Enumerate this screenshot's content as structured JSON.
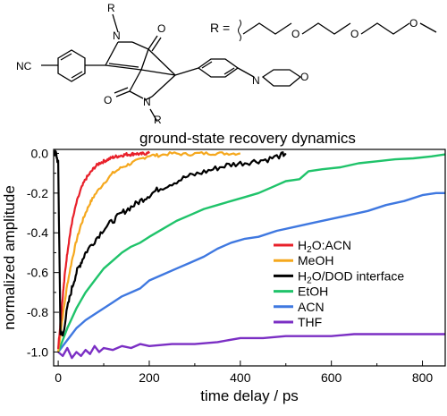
{
  "scheme": {
    "r_label": "R =",
    "atoms": {
      "nc": "NC",
      "n_top": "N",
      "n_bottom": "N",
      "n_morph": "N",
      "r_top": "R",
      "r_bottom": "R",
      "o_top": "O",
      "o_bottom": "O",
      "o_morph": "O",
      "o_chain": [
        "O",
        "O",
        "O"
      ]
    }
  },
  "chart_data": {
    "type": "line",
    "title": "ground-state recovery dynamics",
    "xlabel": "time delay / ps",
    "ylabel": "normalized amplitude",
    "xlim": [
      -10,
      850
    ],
    "ylim": [
      -1.07,
      0.02
    ],
    "xticks": [
      0,
      200,
      400,
      600,
      800
    ],
    "yticks": [
      0.0,
      -0.2,
      -0.4,
      -0.6,
      -0.8,
      -1.0
    ],
    "ytick_labels": [
      "0.0",
      "-0.2",
      "-0.4",
      "-0.6",
      "-0.8",
      "-1.0"
    ],
    "grid": false,
    "legend_position": "lower-right-inside",
    "series": [
      {
        "name": "H2O:ACN",
        "name_main": "H",
        "name_sub": "2",
        "name_rest": "O:ACN",
        "color": "#e8202a",
        "noise": 0.008,
        "x": [
          0,
          5,
          10,
          15,
          20,
          25,
          30,
          40,
          50,
          60,
          70,
          80,
          90,
          100,
          110,
          120,
          130,
          140,
          150,
          160,
          170,
          180,
          190,
          200
        ],
        "y": [
          -0.98,
          -0.85,
          -0.72,
          -0.6,
          -0.5,
          -0.42,
          -0.35,
          -0.25,
          -0.18,
          -0.13,
          -0.1,
          -0.07,
          -0.05,
          -0.04,
          -0.03,
          -0.02,
          -0.015,
          -0.01,
          -0.005,
          -0.005,
          0.0,
          -0.005,
          0.0,
          0.0
        ]
      },
      {
        "name": "MeOH",
        "color": "#f5a81e",
        "noise": 0.008,
        "x": [
          0,
          10,
          20,
          30,
          40,
          50,
          60,
          70,
          80,
          100,
          120,
          140,
          160,
          180,
          200,
          220,
          250,
          280,
          310,
          340,
          370,
          400
        ],
        "y": [
          -1.0,
          -0.82,
          -0.66,
          -0.54,
          -0.44,
          -0.36,
          -0.3,
          -0.25,
          -0.21,
          -0.15,
          -0.1,
          -0.07,
          -0.05,
          -0.03,
          -0.01,
          -0.01,
          0.0,
          -0.005,
          0.0,
          0.0,
          0.0,
          0.0
        ]
      },
      {
        "name": "H2O/DOD interface",
        "name_main": "H",
        "name_sub": "2",
        "name_rest": "O/DOD interface",
        "color": "#000000",
        "noise": 0.015,
        "x": [
          -10,
          -5,
          0,
          5,
          10,
          20,
          30,
          40,
          50,
          60,
          80,
          100,
          120,
          140,
          160,
          180,
          200,
          220,
          250,
          280,
          310,
          340,
          370,
          400,
          430,
          460,
          490,
          500
        ],
        "y": [
          0.0,
          0.0,
          -0.05,
          -0.9,
          -0.92,
          -0.78,
          -0.68,
          -0.6,
          -0.55,
          -0.5,
          -0.44,
          -0.38,
          -0.34,
          -0.3,
          -0.27,
          -0.24,
          -0.21,
          -0.18,
          -0.15,
          -0.12,
          -0.1,
          -0.08,
          -0.06,
          -0.05,
          -0.04,
          -0.03,
          -0.01,
          0.0
        ]
      },
      {
        "name": "EtOH",
        "color": "#1fc36a",
        "noise": 0.0,
        "x": [
          0,
          10,
          20,
          30,
          40,
          50,
          60,
          80,
          100,
          120,
          140,
          160,
          180,
          200,
          230,
          260,
          290,
          320,
          350,
          380,
          410,
          440,
          470,
          500,
          530,
          550,
          580,
          620,
          660,
          700,
          740,
          780,
          820,
          850
        ],
        "y": [
          -1.0,
          -0.94,
          -0.88,
          -0.83,
          -0.78,
          -0.74,
          -0.7,
          -0.64,
          -0.58,
          -0.54,
          -0.5,
          -0.47,
          -0.45,
          -0.42,
          -0.38,
          -0.34,
          -0.31,
          -0.28,
          -0.26,
          -0.24,
          -0.22,
          -0.2,
          -0.17,
          -0.14,
          -0.13,
          -0.09,
          -0.08,
          -0.07,
          -0.05,
          -0.04,
          -0.03,
          -0.025,
          -0.015,
          -0.005
        ]
      },
      {
        "name": "ACN",
        "color": "#3f78e0",
        "noise": 0.0,
        "x": [
          0,
          10,
          20,
          30,
          40,
          50,
          60,
          80,
          100,
          120,
          140,
          160,
          180,
          200,
          230,
          260,
          290,
          320,
          350,
          380,
          410,
          440,
          480,
          520,
          560,
          600,
          640,
          680,
          720,
          760,
          800,
          830,
          850
        ],
        "y": [
          -1.0,
          -0.97,
          -0.94,
          -0.91,
          -0.88,
          -0.86,
          -0.84,
          -0.81,
          -0.78,
          -0.75,
          -0.72,
          -0.7,
          -0.68,
          -0.64,
          -0.61,
          -0.58,
          -0.55,
          -0.52,
          -0.48,
          -0.45,
          -0.43,
          -0.42,
          -0.39,
          -0.37,
          -0.35,
          -0.33,
          -0.31,
          -0.29,
          -0.26,
          -0.24,
          -0.21,
          -0.2,
          -0.2
        ]
      },
      {
        "name": "THF",
        "color": "#7b2fc4",
        "noise": 0.0,
        "x": [
          0,
          10,
          20,
          30,
          40,
          50,
          60,
          70,
          80,
          90,
          100,
          120,
          140,
          160,
          180,
          200,
          250,
          300,
          350,
          400,
          450,
          500,
          550,
          600,
          650,
          700,
          750,
          800,
          850
        ],
        "y": [
          -1.0,
          -1.02,
          -0.98,
          -1.03,
          -1.0,
          -1.02,
          -0.99,
          -1.01,
          -0.97,
          -1.0,
          -0.98,
          -0.99,
          -0.97,
          -0.98,
          -0.96,
          -0.97,
          -0.96,
          -0.96,
          -0.95,
          -0.93,
          -0.93,
          -0.92,
          -0.92,
          -0.92,
          -0.91,
          -0.91,
          -0.91,
          -0.91,
          -0.91
        ]
      }
    ]
  }
}
